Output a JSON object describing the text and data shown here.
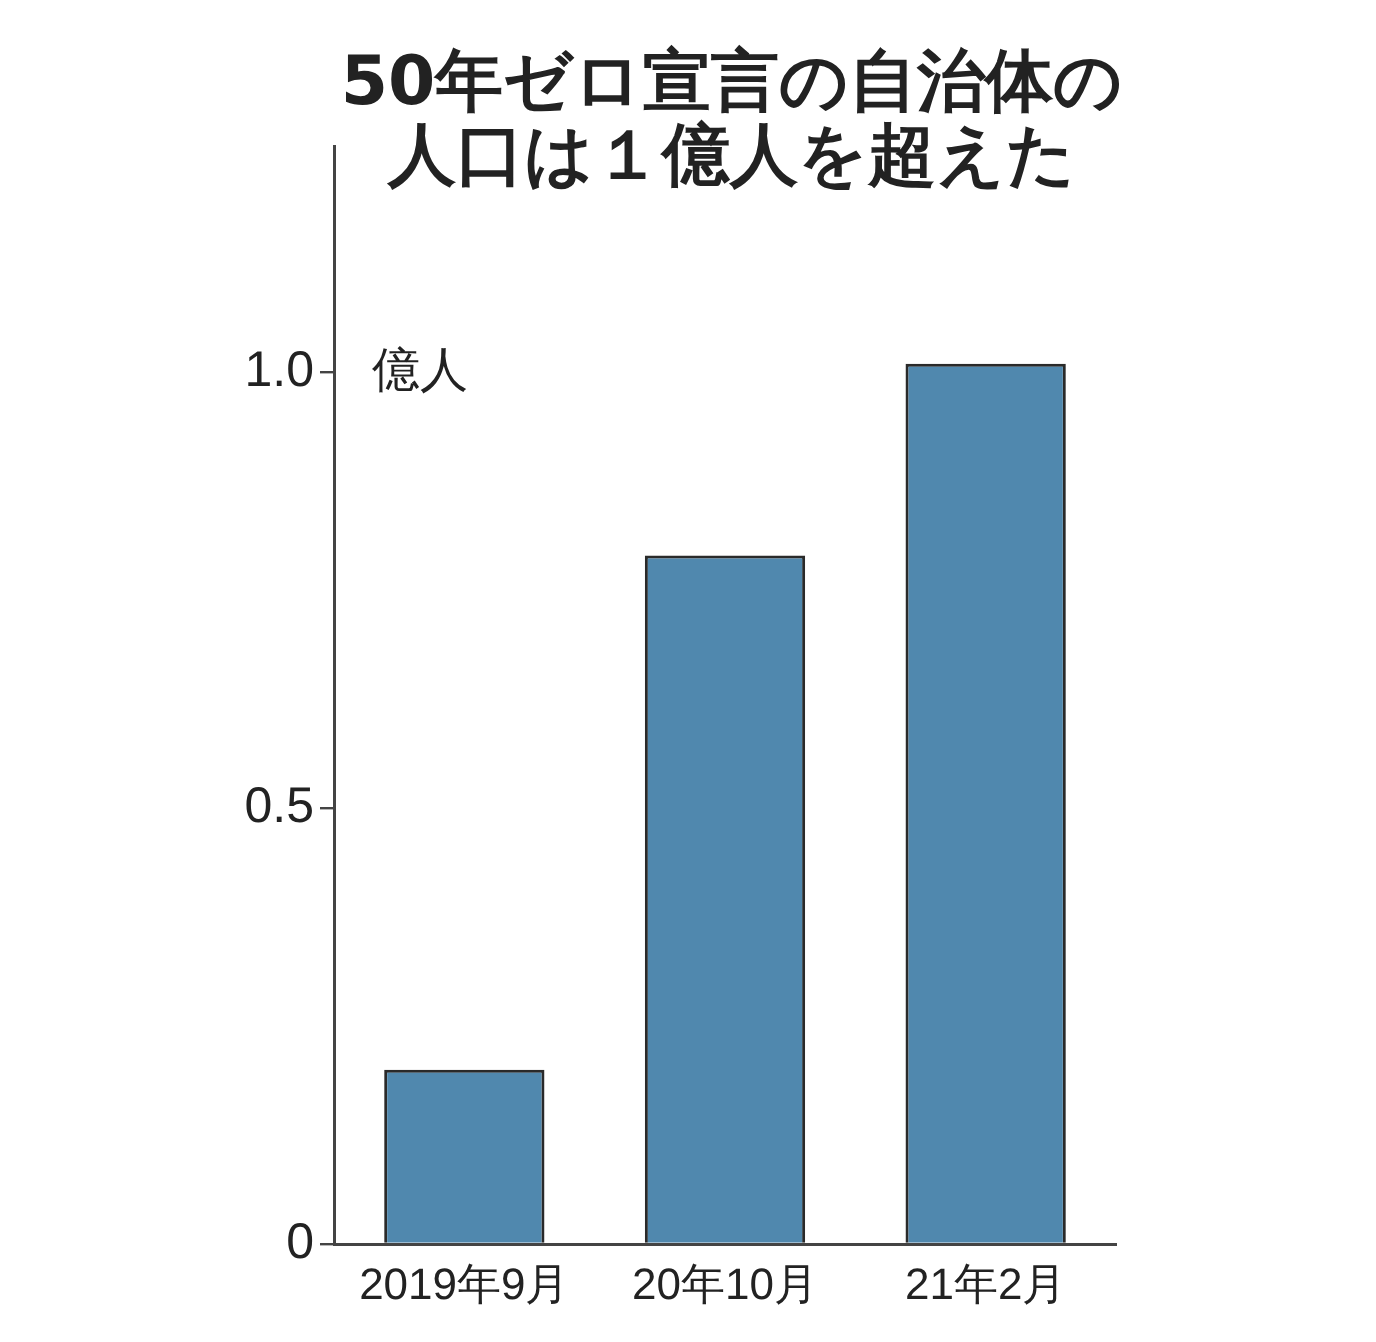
{
  "chart_data": {
    "type": "bar",
    "title": "50年ゼロ宣言の自治体の人口は１億人を超えた",
    "ylabel": "億人",
    "categories": [
      "2019年9月",
      "20年10月",
      "21年2月"
    ],
    "values": [
      0.2,
      0.79,
      1.01
    ],
    "color": "#5088ae",
    "ylim": [
      0,
      1.26
    ],
    "yticks": [
      0,
      0.5,
      {
        "value": 1,
        "label": "1.0"
      }
    ]
  }
}
